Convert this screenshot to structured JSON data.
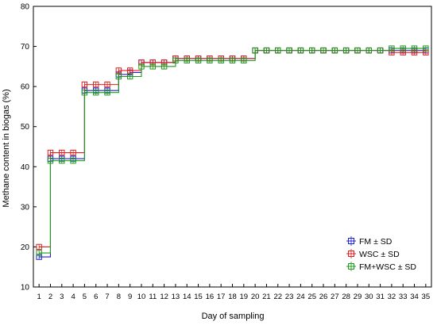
{
  "chart_data": {
    "type": "line",
    "xlabel": "Day of sampling",
    "ylabel": "Methane content in biogas (%)",
    "xlim": [
      0.5,
      35.5
    ],
    "ylim": [
      10,
      80
    ],
    "yticks": [
      10,
      20,
      30,
      40,
      50,
      60,
      70,
      80
    ],
    "x": [
      1,
      2,
      3,
      4,
      5,
      6,
      7,
      8,
      9,
      10,
      11,
      12,
      13,
      14,
      15,
      16,
      17,
      18,
      19,
      20,
      21,
      22,
      23,
      24,
      25,
      26,
      27,
      28,
      29,
      30,
      31,
      32,
      33,
      34,
      35
    ],
    "grid": false,
    "legend_position": "bottom-right",
    "series": [
      {
        "name": "FM ± SD",
        "color": "#1f1fd6",
        "values": [
          17.5,
          42,
          42,
          42,
          59,
          59,
          59,
          63,
          63.5,
          66,
          66,
          66,
          67,
          67,
          67,
          67,
          67,
          67,
          67,
          69,
          69,
          69,
          69,
          69,
          69,
          69,
          69,
          69,
          69,
          69,
          69,
          69,
          69,
          69,
          69
        ]
      },
      {
        "name": "WSC ± SD",
        "color": "#e02020",
        "values": [
          20,
          43.5,
          43.5,
          43.5,
          60.5,
          60.5,
          60.5,
          64,
          64,
          66,
          66,
          66,
          67,
          67,
          67,
          67,
          67,
          67,
          67,
          69,
          69,
          69,
          69,
          69,
          69,
          69,
          69,
          69,
          69,
          69,
          69,
          68.5,
          68.5,
          68.5,
          68.5
        ]
      },
      {
        "name": "FM+WSC ± SD",
        "color": "#1c9a1c",
        "values": [
          18.5,
          41.5,
          41.5,
          41.5,
          58.5,
          58.5,
          58.5,
          62.5,
          62.5,
          65,
          65,
          65,
          66.5,
          66.5,
          66.5,
          66.5,
          66.5,
          66.5,
          66.5,
          69,
          69,
          69,
          69,
          69,
          69,
          69,
          69,
          69,
          69,
          69,
          69,
          69.5,
          69.5,
          69.5,
          69.5
        ]
      }
    ]
  }
}
